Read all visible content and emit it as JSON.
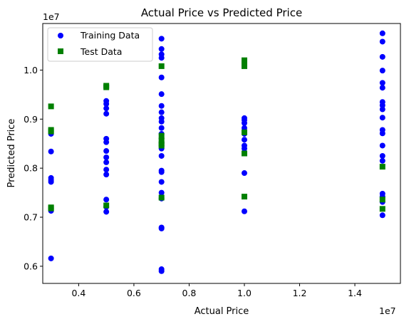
{
  "chart_data": {
    "type": "scatter",
    "title": "Actual Price vs Predicted Price",
    "xlabel": "Actual Price",
    "ylabel": "Predicted Price",
    "x_offset_label": "1e7",
    "y_offset_label": "1e7",
    "xlim": [
      2700000,
      15650000
    ],
    "ylim": [
      5650000,
      10950000
    ],
    "xticks": [
      4000000,
      6000000,
      8000000,
      10000000,
      12000000,
      14000000
    ],
    "xtick_labels": [
      "0.4",
      "0.6",
      "0.8",
      "1.0",
      "1.2",
      "1.4"
    ],
    "yticks": [
      6000000,
      7000000,
      8000000,
      9000000,
      10000000
    ],
    "ytick_labels": [
      "0.6",
      "0.7",
      "0.8",
      "0.9",
      "1.0"
    ],
    "legend_position": "top-left",
    "grid": false,
    "series": [
      {
        "name": "Training Data",
        "marker": "circle",
        "color": "#0000ff",
        "points": [
          [
            3000000,
            8700000
          ],
          [
            3000000,
            8340000
          ],
          [
            3000000,
            7800000
          ],
          [
            3000000,
            7760000
          ],
          [
            3000000,
            7720000
          ],
          [
            3000000,
            7180000
          ],
          [
            3000000,
            7130000
          ],
          [
            3000000,
            6160000
          ],
          [
            5000000,
            9680000
          ],
          [
            5000000,
            9370000
          ],
          [
            5000000,
            9310000
          ],
          [
            5000000,
            9220000
          ],
          [
            5000000,
            9110000
          ],
          [
            5000000,
            8600000
          ],
          [
            5000000,
            8530000
          ],
          [
            5000000,
            8350000
          ],
          [
            5000000,
            8220000
          ],
          [
            5000000,
            8120000
          ],
          [
            5000000,
            7970000
          ],
          [
            5000000,
            7870000
          ],
          [
            5000000,
            7360000
          ],
          [
            5000000,
            7210000
          ],
          [
            5000000,
            7110000
          ],
          [
            7000000,
            10640000
          ],
          [
            7000000,
            10430000
          ],
          [
            7000000,
            10320000
          ],
          [
            7000000,
            10250000
          ],
          [
            7000000,
            9850000
          ],
          [
            7000000,
            9510000
          ],
          [
            7000000,
            9270000
          ],
          [
            7000000,
            9140000
          ],
          [
            7000000,
            9020000
          ],
          [
            7000000,
            8950000
          ],
          [
            7000000,
            8820000
          ],
          [
            7000000,
            8700000
          ],
          [
            7000000,
            8600000
          ],
          [
            7000000,
            8520000
          ],
          [
            7000000,
            8460000
          ],
          [
            7000000,
            8400000
          ],
          [
            7000000,
            8250000
          ],
          [
            7000000,
            7950000
          ],
          [
            7000000,
            7920000
          ],
          [
            7000000,
            7720000
          ],
          [
            7000000,
            7500000
          ],
          [
            7000000,
            7380000
          ],
          [
            7000000,
            6790000
          ],
          [
            7000000,
            6770000
          ],
          [
            7000000,
            5940000
          ],
          [
            7000000,
            5900000
          ],
          [
            10000000,
            9020000
          ],
          [
            10000000,
            8980000
          ],
          [
            10000000,
            8920000
          ],
          [
            10000000,
            8820000
          ],
          [
            10000000,
            8700000
          ],
          [
            10000000,
            8580000
          ],
          [
            10000000,
            8460000
          ],
          [
            10000000,
            8400000
          ],
          [
            10000000,
            7900000
          ],
          [
            10000000,
            7120000
          ],
          [
            15000000,
            10750000
          ],
          [
            15000000,
            10580000
          ],
          [
            15000000,
            10270000
          ],
          [
            15000000,
            9990000
          ],
          [
            15000000,
            9740000
          ],
          [
            15000000,
            9640000
          ],
          [
            15000000,
            9350000
          ],
          [
            15000000,
            9280000
          ],
          [
            15000000,
            9200000
          ],
          [
            15000000,
            9030000
          ],
          [
            15000000,
            8780000
          ],
          [
            15000000,
            8710000
          ],
          [
            15000000,
            8460000
          ],
          [
            15000000,
            8250000
          ],
          [
            15000000,
            8150000
          ],
          [
            15000000,
            7480000
          ],
          [
            15000000,
            7420000
          ],
          [
            15000000,
            7310000
          ],
          [
            15000000,
            7040000
          ]
        ]
      },
      {
        "name": "Test Data",
        "marker": "square",
        "color": "#008000",
        "points": [
          [
            3000000,
            9260000
          ],
          [
            3000000,
            8780000
          ],
          [
            3000000,
            8750000
          ],
          [
            3000000,
            7200000
          ],
          [
            3000000,
            7180000
          ],
          [
            5000000,
            9680000
          ],
          [
            5000000,
            9650000
          ],
          [
            5000000,
            7240000
          ],
          [
            7000000,
            10080000
          ],
          [
            7000000,
            8660000
          ],
          [
            7000000,
            8560000
          ],
          [
            7000000,
            8490000
          ],
          [
            7000000,
            8460000
          ],
          [
            7000000,
            7400000
          ],
          [
            10000000,
            10200000
          ],
          [
            10000000,
            10140000
          ],
          [
            10000000,
            10080000
          ],
          [
            10000000,
            8730000
          ],
          [
            10000000,
            8300000
          ],
          [
            10000000,
            7420000
          ],
          [
            15000000,
            8030000
          ],
          [
            15000000,
            7360000
          ],
          [
            15000000,
            7170000
          ]
        ]
      }
    ]
  }
}
